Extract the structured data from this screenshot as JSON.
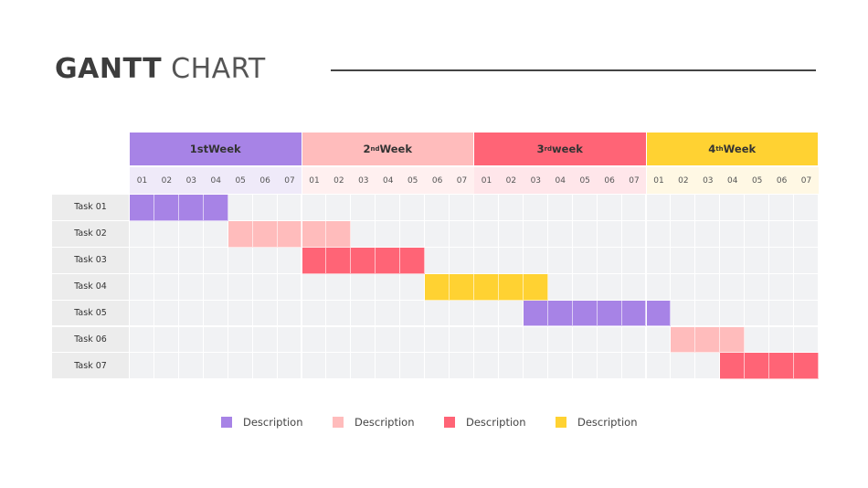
{
  "title": {
    "bold": "GANTT",
    "light": "CHART"
  },
  "chart_data": {
    "type": "gantt",
    "weeks": [
      {
        "num": "1st",
        "sup": "",
        "word": " Week",
        "color": "#a783e6",
        "day_bg": "#efeaf9"
      },
      {
        "num": "2",
        "sup": "nd",
        "word": " Week",
        "color": "#ffbcbc",
        "day_bg": "#fff0f0"
      },
      {
        "num": "3",
        "sup": "rd",
        "word": " week",
        "color": "#ff6476",
        "day_bg": "#ffe6ea"
      },
      {
        "num": "4",
        "sup": "th",
        "word": " Week",
        "color": "#ffd232",
        "day_bg": "#fff8e4"
      }
    ],
    "days": [
      "01",
      "02",
      "03",
      "04",
      "05",
      "06",
      "07"
    ],
    "tasks": [
      {
        "label": "Task 01",
        "start": "Week 1 Day 01",
        "end": "Week 1 Day 04",
        "start_day": 1,
        "end_day": 4,
        "color": "#a783e6"
      },
      {
        "label": "Task 02",
        "start": "Week 1 Day 05",
        "end": "Week 2 Day 02",
        "start_day": 5,
        "end_day": 9,
        "color": "#ffbcbc"
      },
      {
        "label": "Task 03",
        "start": "Week 2 Day 01",
        "end": "Week 2 Day 05",
        "start_day": 8,
        "end_day": 12,
        "color": "#ff6476"
      },
      {
        "label": "Task 04",
        "start": "Week 2 Day 06",
        "end": "Week 3 Day 03",
        "start_day": 13,
        "end_day": 17,
        "color": "#ffd232"
      },
      {
        "label": "Task 05",
        "start": "Week 3 Day 03",
        "end": "Week 4 Day 01",
        "start_day": 17,
        "end_day": 22,
        "color": "#a783e6"
      },
      {
        "label": "Task 06",
        "start": "Week 4 Day 02",
        "end": "Week 4 Day 04",
        "start_day": 23,
        "end_day": 25,
        "color": "#ffbcbc"
      },
      {
        "label": "Task 07",
        "start": "Week 4 Day 04",
        "end": "Week 4 Day 07",
        "start_day": 25,
        "end_day": 28,
        "color": "#ff6476"
      }
    ],
    "legend": [
      {
        "label": "Description",
        "color": "#a783e6"
      },
      {
        "label": "Description",
        "color": "#ffbcbc"
      },
      {
        "label": "Description",
        "color": "#ff6476"
      },
      {
        "label": "Description",
        "color": "#ffd232"
      }
    ]
  }
}
